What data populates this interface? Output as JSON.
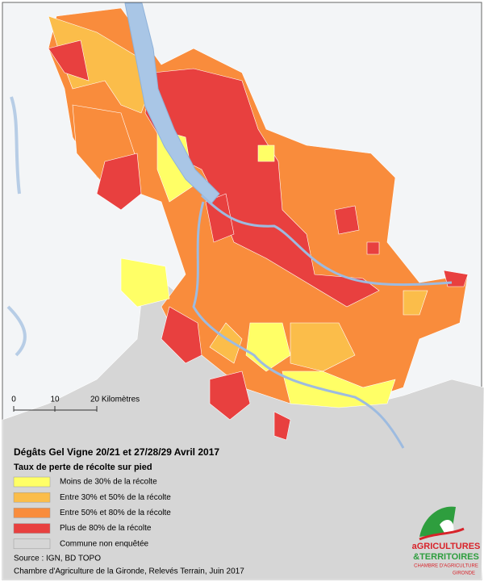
{
  "map": {
    "title": "Dégâts Gel Vigne 20/21 et 27/28/29 Avril 2017",
    "subtitle": "Taux de perte de récolte sur pied",
    "legend": [
      {
        "label": "Moins de 30% de la récolte",
        "color": "#ffff66"
      },
      {
        "label": "Entre 30% et 50% de la récolte",
        "color": "#fbbd4a"
      },
      {
        "label": "Entre 50% et 80% de la récolte",
        "color": "#f98c3c"
      },
      {
        "label": "Plus de 80% de la récolte",
        "color": "#e8403f"
      },
      {
        "label": "Commune non enquêtée",
        "color": "#d6d6d6"
      }
    ],
    "scale_bar": [
      "0",
      "10",
      "20 Kilomètres"
    ],
    "source": [
      "Source : IGN, BD TOPO",
      "Chambre d'Agriculture de la Gironde, Relevés Terrain, Juin 2017"
    ],
    "logo": [
      "aGRICULTURES",
      "&TERRITOIRES",
      "CHAMBRE D'AGRICULTURE",
      "GIRONDE"
    ]
  }
}
